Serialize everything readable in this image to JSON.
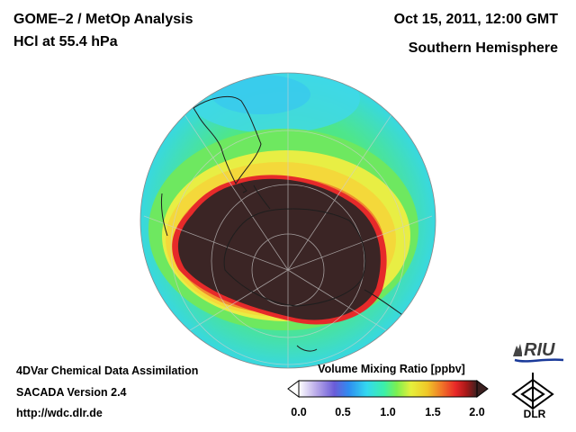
{
  "header": {
    "title_line1": "GOME–2 / MetOp Analysis",
    "title_line2": "HCl at 55.4 hPa",
    "date": "Oct 15, 2011, 12:00 GMT",
    "region": "Southern Hemisphere"
  },
  "footer": {
    "line1": "4DVar Chemical Data Assimilation",
    "line2": "SACADA Version 2.4",
    "url": "http://wdc.dlr.de"
  },
  "colorbar": {
    "title": "Volume Mixing Ratio [ppbv]",
    "range": [
      0.0,
      2.0
    ],
    "ticks": [
      "0.0",
      "0.5",
      "1.0",
      "1.5",
      "2.0"
    ],
    "colors": [
      "#ffffff",
      "#b8a8e8",
      "#6a5cd8",
      "#2f8cf0",
      "#33d8f0",
      "#3cf0a8",
      "#7cf050",
      "#e6f03c",
      "#f0c828",
      "#f07828",
      "#e82828",
      "#a81818",
      "#3c2020"
    ]
  },
  "logos": {
    "riu": "RIU",
    "dlr": "DLR"
  },
  "map": {
    "projection": "orthographic",
    "hemisphere": "south",
    "colors": {
      "vortex": "#3a2424",
      "edge_red": "#e82a2a",
      "orange": "#f07a2a",
      "yellow": "#f2e23a",
      "green": "#58e858",
      "cyan": "#3ee0d0",
      "grid": "#bfbfbf",
      "coast": "#222222"
    }
  }
}
